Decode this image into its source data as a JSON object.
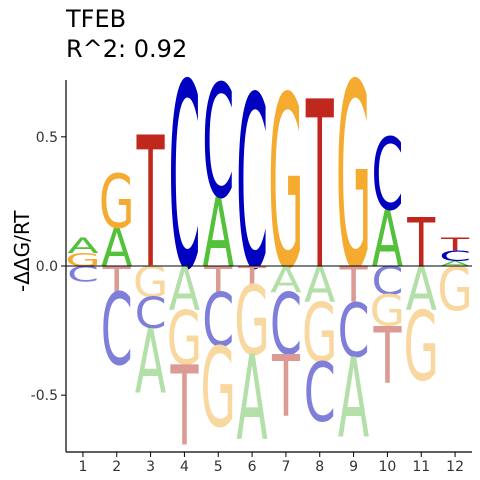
{
  "chart_data": {
    "type": "sequence-logo",
    "title": "TFEB",
    "subtitle": "R^2: 0.92",
    "ylabel": "-ΔΔG/RT",
    "xlabel": "",
    "ylim": [
      -0.72,
      0.72
    ],
    "yticks": [
      {
        "value": -0.5,
        "label": "-0.5"
      },
      {
        "value": 0.0,
        "label": "0.0"
      },
      {
        "value": 0.5,
        "label": "0.5"
      }
    ],
    "positions": [
      {
        "label": "1",
        "pos": [
          {
            "base": "G",
            "h": 0.05
          },
          {
            "base": "A",
            "h": 0.06
          }
        ],
        "neg": [
          {
            "base": "C",
            "h": 0.06
          },
          {
            "base": "T",
            "h": 0.0
          }
        ]
      },
      {
        "label": "2",
        "pos": [
          {
            "base": "A",
            "h": 0.15
          },
          {
            "base": "G",
            "h": 0.21
          }
        ],
        "neg": [
          {
            "base": "T",
            "h": 0.1
          },
          {
            "base": "C",
            "h": 0.28
          },
          {
            "base": "G",
            "h": 0.0
          }
        ]
      },
      {
        "label": "3",
        "pos": [
          {
            "base": "T",
            "h": 0.51
          }
        ],
        "neg": [
          {
            "base": "G",
            "h": 0.12
          },
          {
            "base": "C",
            "h": 0.12
          },
          {
            "base": "A",
            "h": 0.25
          }
        ]
      },
      {
        "label": "4",
        "pos": [
          {
            "base": "C",
            "h": 0.72
          }
        ],
        "neg": [
          {
            "base": "A",
            "h": 0.17
          },
          {
            "base": "G",
            "h": 0.21
          },
          {
            "base": "T",
            "h": 0.31
          }
        ]
      },
      {
        "label": "5",
        "pos": [
          {
            "base": "A",
            "h": 0.27
          },
          {
            "base": "C",
            "h": 0.44
          }
        ],
        "neg": [
          {
            "base": "T",
            "h": 0.1
          },
          {
            "base": "C",
            "h": 0.21
          },
          {
            "base": "G",
            "h": 0.31
          }
        ]
      },
      {
        "label": "6",
        "pos": [
          {
            "base": "C",
            "h": 0.67
          }
        ],
        "neg": [
          {
            "base": "T",
            "h": 0.07
          },
          {
            "base": "G",
            "h": 0.27
          },
          {
            "base": "A",
            "h": 0.33
          }
        ]
      },
      {
        "label": "7",
        "pos": [
          {
            "base": "G",
            "h": 0.67
          }
        ],
        "neg": [
          {
            "base": "A",
            "h": 0.1
          },
          {
            "base": "C",
            "h": 0.24
          },
          {
            "base": "T",
            "h": 0.24
          }
        ]
      },
      {
        "label": "8",
        "pos": [
          {
            "base": "T",
            "h": 0.65
          }
        ],
        "neg": [
          {
            "base": "A",
            "h": 0.14
          },
          {
            "base": "G",
            "h": 0.23
          },
          {
            "base": "C",
            "h": 0.23
          }
        ]
      },
      {
        "label": "9",
        "pos": [
          {
            "base": "G",
            "h": 0.72
          }
        ],
        "neg": [
          {
            "base": "T",
            "h": 0.14
          },
          {
            "base": "C",
            "h": 0.21
          },
          {
            "base": "A",
            "h": 0.31
          }
        ]
      },
      {
        "label": "10",
        "pos": [
          {
            "base": "A",
            "h": 0.22
          },
          {
            "base": "C",
            "h": 0.28
          }
        ],
        "neg": [
          {
            "base": "C",
            "h": 0.11
          },
          {
            "base": "G",
            "h": 0.12
          },
          {
            "base": "T",
            "h": 0.22
          }
        ]
      },
      {
        "label": "11",
        "pos": [
          {
            "base": "T",
            "h": 0.19
          }
        ],
        "neg": [
          {
            "base": "A",
            "h": 0.17
          },
          {
            "base": "G",
            "h": 0.27
          }
        ]
      },
      {
        "label": "12",
        "pos": [
          {
            "base": "A",
            "h": 0.02
          },
          {
            "base": "C",
            "h": 0.04
          },
          {
            "base": "T",
            "h": 0.05
          }
        ],
        "neg": [
          {
            "base": "G",
            "h": 0.17
          }
        ]
      }
    ],
    "colors": {
      "A": {
        "pos": "#53c23a",
        "neg": "#b3dfa8"
      },
      "C": {
        "pos": "#0000c0",
        "neg": "#7f7fd9"
      },
      "G": {
        "pos": "#f5aa30",
        "neg": "#f9d8a0"
      },
      "T": {
        "pos": "#c0271d",
        "neg": "#db9a94"
      }
    }
  }
}
